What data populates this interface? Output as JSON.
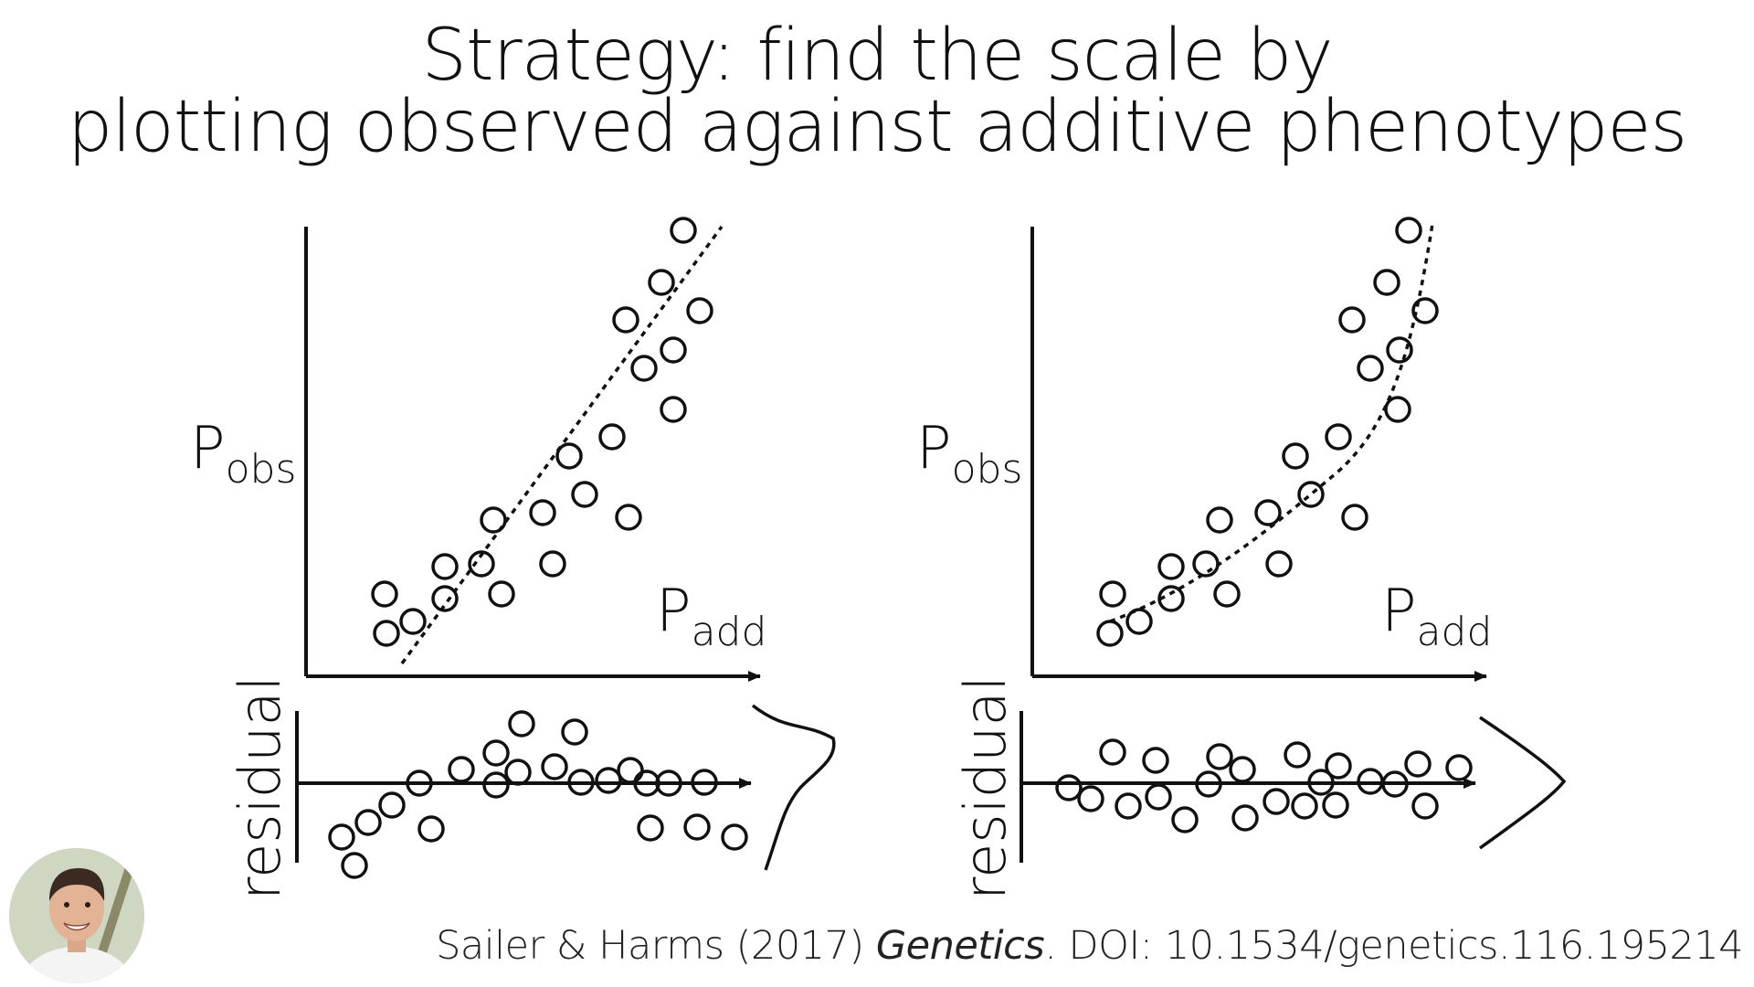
{
  "title": {
    "line1": "Strategy: find the scale by",
    "line2": "plotting observed against additive phenotypes"
  },
  "panels": [
    {
      "id": "linear",
      "ylabel_main": "P",
      "ylabel_sub": "obs",
      "xlabel_main": "P",
      "xlabel_sub": "add",
      "residual_label": "residual"
    },
    {
      "id": "nonlinear",
      "ylabel_main": "P",
      "ylabel_sub": "obs",
      "xlabel_main": "P",
      "xlabel_sub": "add",
      "residual_label": "residual"
    }
  ],
  "citation": {
    "authors": "Sailer & Harms (2017)",
    "journal": "Genetics",
    "doi": ". DOI: 10.1534/genetics.116.195214"
  },
  "colors": {
    "ink": "#111111",
    "background": "#ffffff"
  }
}
